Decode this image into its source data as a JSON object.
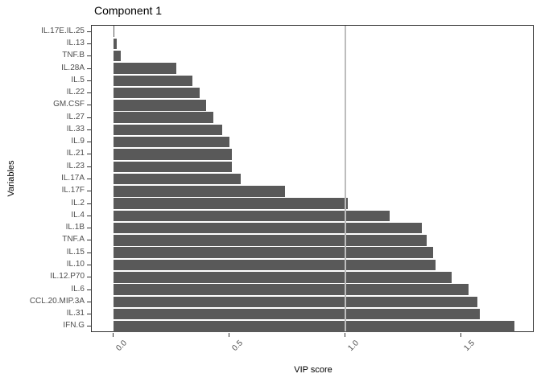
{
  "chart_data": {
    "type": "bar",
    "orientation": "horizontal",
    "title": "Component 1",
    "xlabel": "VIP score",
    "ylabel": "Variables",
    "categories": [
      "IL.17E.IL.25",
      "IL.13",
      "TNF.B",
      "IL.28A",
      "IL.5",
      "IL.22",
      "GM.CSF",
      "IL.27",
      "IL.33",
      "IL.9",
      "IL.21",
      "IL.23",
      "IL.17A",
      "IL.17F",
      "IL.2",
      "IL.4",
      "IL.1B",
      "TNF.A",
      "IL.15",
      "IL.10",
      "IL.12.P70",
      "IL.6",
      "CCL.20.MIP.3A",
      "IL.31",
      "IFN.G"
    ],
    "values": [
      0.005,
      0.015,
      0.03,
      0.27,
      0.34,
      0.37,
      0.4,
      0.43,
      0.47,
      0.5,
      0.51,
      0.51,
      0.55,
      0.74,
      1.01,
      1.19,
      1.33,
      1.35,
      1.38,
      1.39,
      1.46,
      1.53,
      1.57,
      1.58,
      1.73
    ],
    "xlim": [
      -0.094,
      1.816
    ],
    "xtick_values": [
      0.0,
      0.5,
      1.0,
      1.5
    ],
    "xtick_labels": [
      "0.0",
      "0.5",
      "1.0",
      "1.5"
    ],
    "reference_line_x": 1.0,
    "grid": false,
    "legend": "none",
    "bar_color": "#595959",
    "reference_line_color": "#bdbdbd",
    "panel_border_color": "#333333",
    "tick_label_color": "#4d4d4d",
    "text_color": "#000000"
  }
}
